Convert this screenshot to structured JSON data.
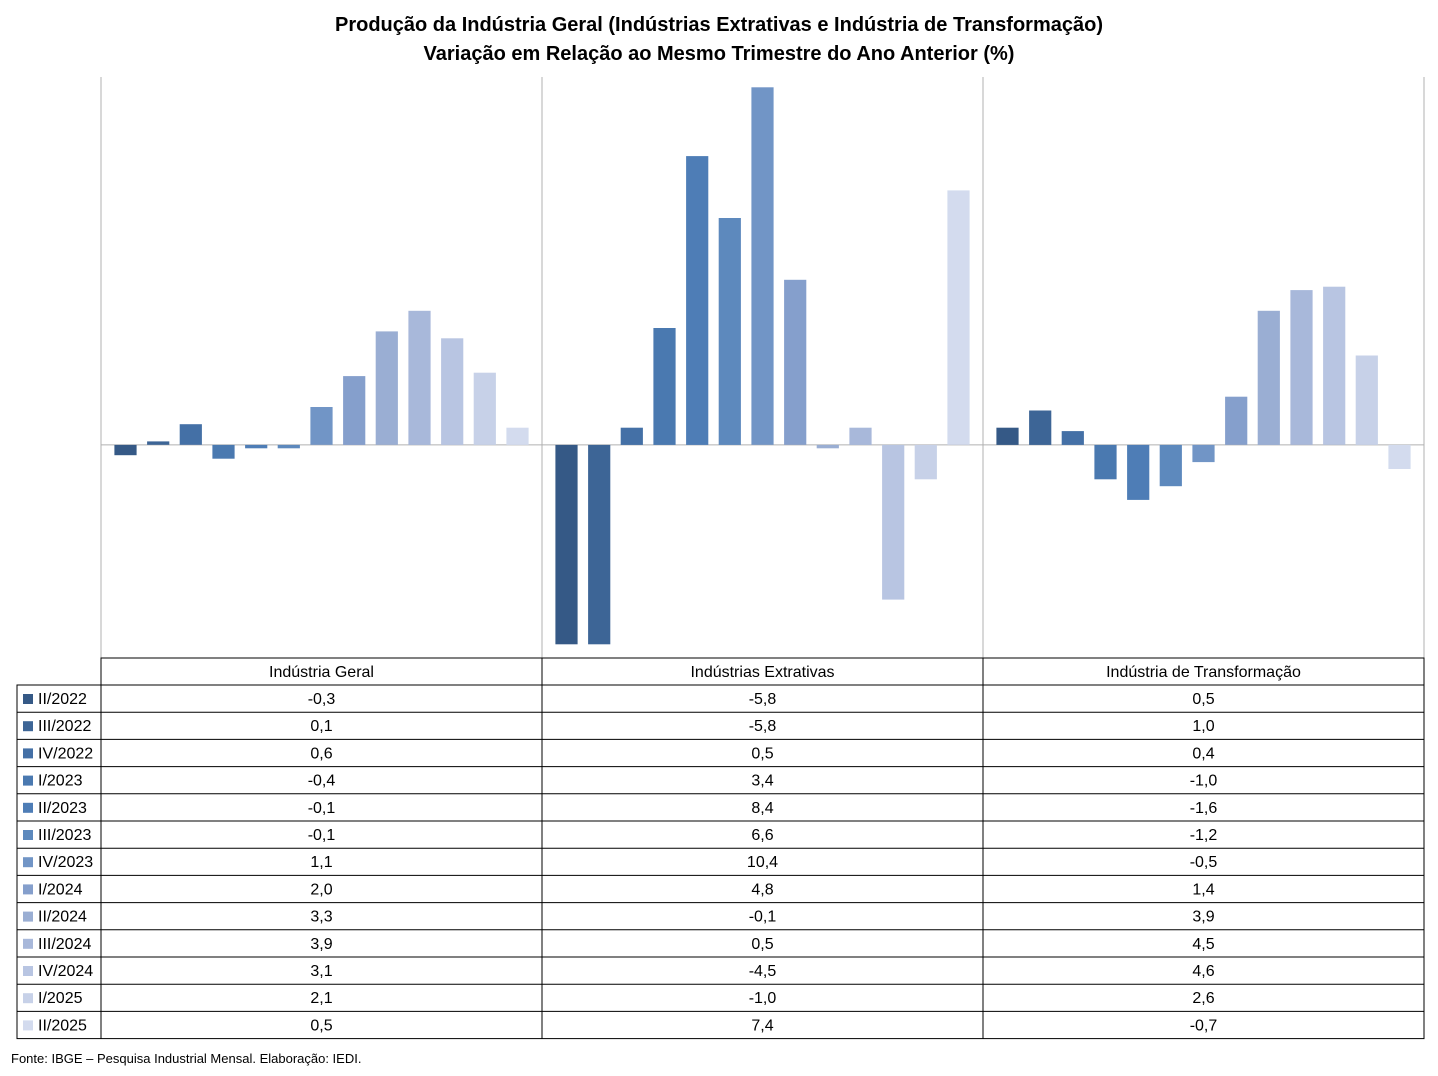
{
  "title_line1": "Produção da Indústria Geral (Indústrias Extrativas e Indústria de Transformação)",
  "title_line2": "Variação em Relação ao Mesmo Trimestre do Ano Anterior (%)",
  "source": "Fonte: IBGE – Pesquisa Industrial Mensal. Elaboração: IEDI.",
  "chart_data": {
    "type": "bar",
    "groups": [
      "Indústria Geral",
      "Indústrias Extrativas",
      "Indústria de Transformação"
    ],
    "series": [
      {
        "name": "II/2022",
        "color": "#355986",
        "values": [
          -0.3,
          -5.8,
          0.5
        ]
      },
      {
        "name": "III/2022",
        "color": "#3d6596",
        "values": [
          0.1,
          -5.8,
          1.0
        ]
      },
      {
        "name": "IV/2022",
        "color": "#4470a6",
        "values": [
          0.6,
          0.5,
          0.4
        ]
      },
      {
        "name": "I/2023",
        "color": "#4a79b0",
        "values": [
          -0.4,
          3.4,
          -1.0
        ]
      },
      {
        "name": "II/2023",
        "color": "#4e7db6",
        "values": [
          -0.1,
          8.4,
          -1.6
        ]
      },
      {
        "name": "III/2023",
        "color": "#5d89bd",
        "values": [
          -0.1,
          6.6,
          -1.2
        ]
      },
      {
        "name": "IV/2023",
        "color": "#7195c6",
        "values": [
          1.1,
          10.4,
          -0.5
        ]
      },
      {
        "name": "I/2024",
        "color": "#859fcc",
        "values": [
          2.0,
          4.8,
          1.4
        ]
      },
      {
        "name": "II/2024",
        "color": "#9aaed3",
        "values": [
          3.3,
          -0.1,
          3.9
        ]
      },
      {
        "name": "III/2024",
        "color": "#a8b8da",
        "values": [
          3.9,
          0.5,
          4.5
        ]
      },
      {
        "name": "IV/2024",
        "color": "#b8c5e2",
        "values": [
          3.1,
          -4.5,
          4.6
        ]
      },
      {
        "name": "I/2025",
        "color": "#c7d1e8",
        "values": [
          2.1,
          -1.0,
          2.6
        ]
      },
      {
        "name": "II/2025",
        "color": "#d3dbee",
        "values": [
          0.5,
          7.4,
          -0.7
        ]
      }
    ],
    "ylim": [
      -6.2,
      10.7
    ],
    "legend": "table-below"
  }
}
